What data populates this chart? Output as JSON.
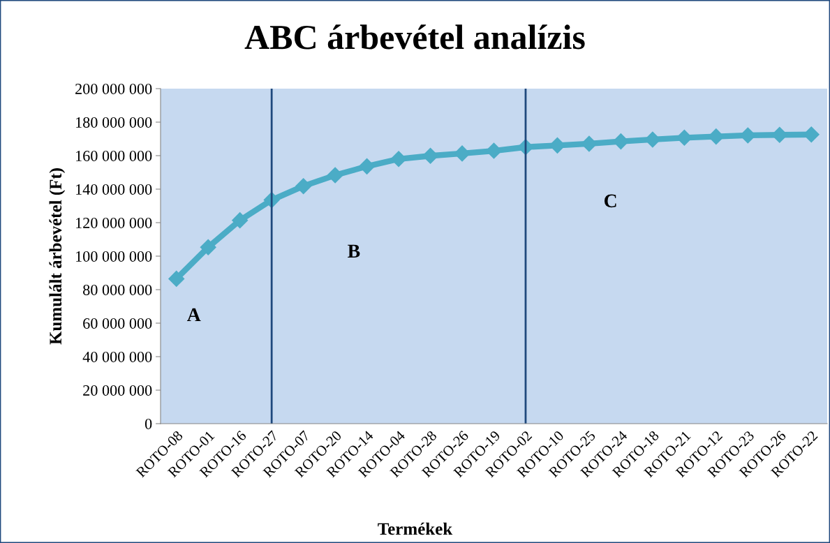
{
  "chart_data": {
    "type": "line",
    "title": "ABC árbevétel analízis",
    "xlabel": "Termékek",
    "ylabel": "Kumulált árbevétel (Ft)",
    "categories": [
      "ROTO-08",
      "ROTO-01",
      "ROTO-16",
      "ROTO-27",
      "ROTO-07",
      "ROTO-20",
      "ROTO-14",
      "ROTO-04",
      "ROTO-28",
      "ROTO-26",
      "ROTO-19",
      "ROTO-02",
      "ROTO-10",
      "ROTO-25",
      "ROTO-24",
      "ROTO-18",
      "ROTO-21",
      "ROTO-12",
      "ROTO-23",
      "ROTO-26",
      "ROTO-22"
    ],
    "series": [
      {
        "color": "#4bacc6",
        "values": [
          86500000,
          105300000,
          121400000,
          133500000,
          141800000,
          148300000,
          153600000,
          158000000,
          159900000,
          161300000,
          162900000,
          165100000,
          166100000,
          167100000,
          168500000,
          169600000,
          170700000,
          171400000,
          172100000,
          172400000,
          172600000
        ]
      }
    ],
    "ylim": [
      0,
      200000000
    ],
    "yticks": [
      0,
      {
        "value": 20000000,
        "label": "20 000 000"
      },
      {
        "value": 40000000,
        "label": "40 000 000"
      },
      {
        "value": 60000000,
        "label": "60 000 000"
      },
      {
        "value": 80000000,
        "label": "80 000 000"
      },
      {
        "value": 100000000,
        "label": "100 000 000"
      },
      {
        "value": 120000000,
        "label": "120 000 000"
      },
      {
        "value": 140000000,
        "label": "140 000 000"
      },
      {
        "value": 160000000,
        "label": "160 000 000"
      },
      {
        "value": 180000000,
        "label": "180 000 000"
      },
      {
        "value": 200000000,
        "label": "200 000 000"
      }
    ],
    "ref_lines": [
      {
        "axis": "x",
        "value": "ROTO-27",
        "color": "#1f497d"
      },
      {
        "axis": "x",
        "value": "ROTO-02",
        "color": "#1f497d"
      }
    ],
    "annotations": [
      "A",
      "B",
      "C"
    ],
    "marker": "diamond",
    "line_style": "solid",
    "grid": false,
    "legend": false
  }
}
